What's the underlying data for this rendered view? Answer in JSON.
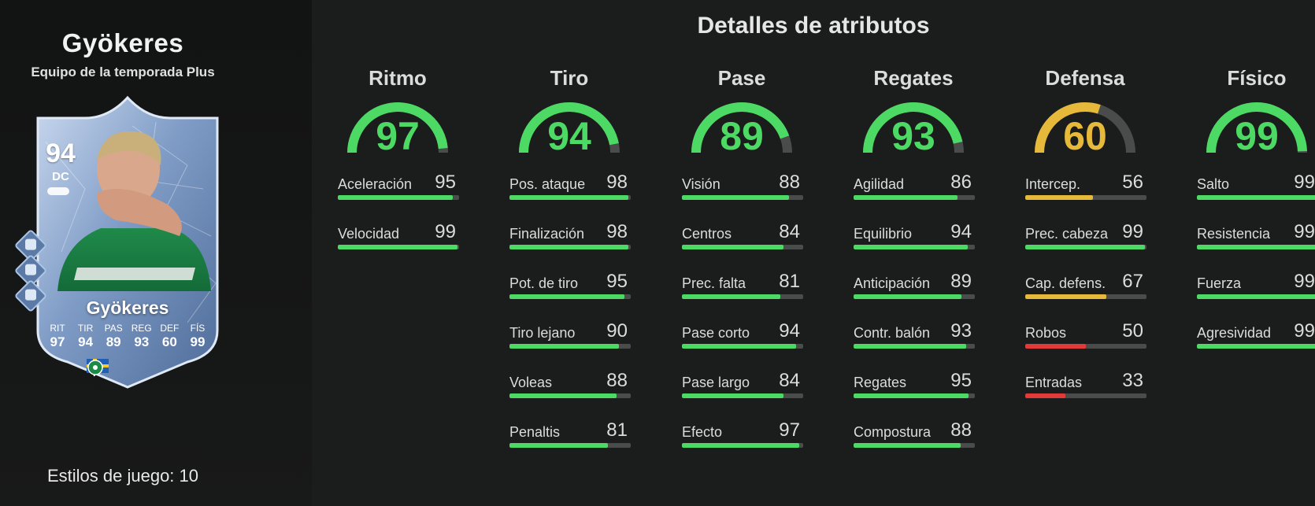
{
  "player": {
    "name": "Gyökeres",
    "card_type": "Equipo de la temporada Plus",
    "playstyles": "Estilos de juego: 10"
  },
  "card": {
    "overall": "94",
    "position": "DC",
    "name": "Gyökeres",
    "stats": [
      {
        "label": "RIT",
        "value": "97"
      },
      {
        "label": "TIR",
        "value": "94"
      },
      {
        "label": "PAS",
        "value": "89"
      },
      {
        "label": "REG",
        "value": "93"
      },
      {
        "label": "DEF",
        "value": "60"
      },
      {
        "label": "FÍS",
        "value": "99"
      }
    ],
    "icons": [
      "finisher-playstyle-icon",
      "power-shot-playstyle-icon",
      "rapid-playstyle-icon",
      "sweden-flag-icon",
      "liga-portugal-icon",
      "sporting-cp-crest-icon",
      "boot-icon"
    ]
  },
  "details_title": "Detalles de atributos",
  "colors": {
    "high": "#4cd964",
    "mid": "#e6b93a",
    "low": "#e23a3a",
    "track": "#4a4c4c"
  },
  "categories": [
    {
      "title": "Ritmo",
      "value": 97,
      "color": "#4cd964",
      "attributes": [
        {
          "name": "Aceleración",
          "value": 95,
          "color": "#4cd964"
        },
        {
          "name": "Velocidad",
          "value": 99,
          "color": "#4cd964"
        }
      ]
    },
    {
      "title": "Tiro",
      "value": 94,
      "color": "#4cd964",
      "attributes": [
        {
          "name": "Pos. ataque",
          "value": 98,
          "color": "#4cd964"
        },
        {
          "name": "Finalización",
          "value": 98,
          "color": "#4cd964"
        },
        {
          "name": "Pot. de tiro",
          "value": 95,
          "color": "#4cd964"
        },
        {
          "name": "Tiro lejano",
          "value": 90,
          "color": "#4cd964"
        },
        {
          "name": "Voleas",
          "value": 88,
          "color": "#4cd964"
        },
        {
          "name": "Penaltis",
          "value": 81,
          "color": "#4cd964"
        }
      ]
    },
    {
      "title": "Pase",
      "value": 89,
      "color": "#4cd964",
      "attributes": [
        {
          "name": "Visión",
          "value": 88,
          "color": "#4cd964"
        },
        {
          "name": "Centros",
          "value": 84,
          "color": "#4cd964"
        },
        {
          "name": "Prec. falta",
          "value": 81,
          "color": "#4cd964"
        },
        {
          "name": "Pase corto",
          "value": 94,
          "color": "#4cd964"
        },
        {
          "name": "Pase largo",
          "value": 84,
          "color": "#4cd964"
        },
        {
          "name": "Efecto",
          "value": 97,
          "color": "#4cd964"
        }
      ]
    },
    {
      "title": "Regates",
      "value": 93,
      "color": "#4cd964",
      "attributes": [
        {
          "name": "Agilidad",
          "value": 86,
          "color": "#4cd964"
        },
        {
          "name": "Equilibrio",
          "value": 94,
          "color": "#4cd964"
        },
        {
          "name": "Anticipación",
          "value": 89,
          "color": "#4cd964"
        },
        {
          "name": "Contr. balón",
          "value": 93,
          "color": "#4cd964"
        },
        {
          "name": "Regates",
          "value": 95,
          "color": "#4cd964"
        },
        {
          "name": "Compostura",
          "value": 88,
          "color": "#4cd964"
        }
      ]
    },
    {
      "title": "Defensa",
      "value": 60,
      "color": "#e6b93a",
      "attributes": [
        {
          "name": "Intercep.",
          "value": 56,
          "color": "#e6b93a"
        },
        {
          "name": "Prec. cabeza",
          "value": 99,
          "color": "#4cd964"
        },
        {
          "name": "Cap. defens.",
          "value": 67,
          "color": "#e6b93a"
        },
        {
          "name": "Robos",
          "value": 50,
          "color": "#e23a3a"
        },
        {
          "name": "Entradas",
          "value": 33,
          "color": "#e23a3a"
        }
      ]
    },
    {
      "title": "Físico",
      "value": 99,
      "color": "#4cd964",
      "attributes": [
        {
          "name": "Salto",
          "value": 99,
          "color": "#4cd964"
        },
        {
          "name": "Resistencia",
          "value": 99,
          "color": "#4cd964"
        },
        {
          "name": "Fuerza",
          "value": 99,
          "color": "#4cd964"
        },
        {
          "name": "Agresividad",
          "value": 99,
          "color": "#4cd964"
        }
      ]
    }
  ]
}
